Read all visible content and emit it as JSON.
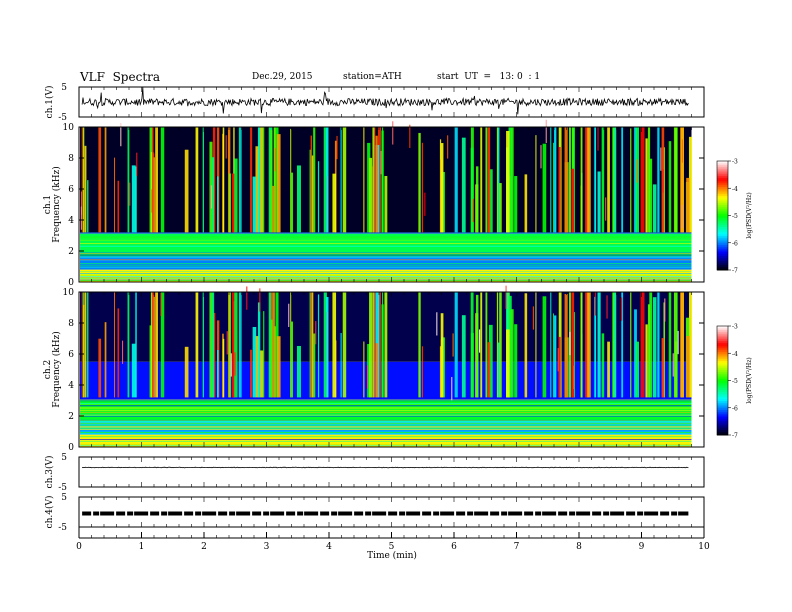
{
  "header": {
    "title": "VLF  Spectra",
    "date": "Dec.29, 2015",
    "station": "station=ATH",
    "start": "start  UT  =   13: 0  : 1"
  },
  "chart_data": [
    {
      "type": "line",
      "id": "ch1",
      "ylabel": "ch.1(V)",
      "ylim": [
        -5,
        5
      ],
      "yticks": [
        "5",
        "-5"
      ],
      "xlim": [
        0,
        10
      ],
      "baseline": 0,
      "noise_amplitude": 1.2,
      "spike_amplitude": 4.5
    },
    {
      "type": "heatmap",
      "id": "ch1-spectrogram",
      "ylabel_channel": "ch.1",
      "ylabel": "Frequency  (kHz)",
      "ylim": [
        0,
        10
      ],
      "yticks": [
        "0",
        "2",
        "4",
        "6",
        "8",
        "10"
      ],
      "xlim": [
        0,
        9.8
      ],
      "colorbar_label": "log(PSD(V²/Hz)",
      "colorbar_ticks": [
        "-3",
        "-4",
        "-5",
        "-6",
        "-7"
      ],
      "colorbar_range": [
        -7,
        -3
      ],
      "colormap": [
        "#000000",
        "#0000ff",
        "#00ffff",
        "#00ff00",
        "#ffff00",
        "#ff0000",
        "#ffffff"
      ],
      "bands": [
        {
          "from": 0,
          "to": 0.8,
          "level": -4.3
        },
        {
          "from": 0.8,
          "to": 1.6,
          "level": -6.0
        },
        {
          "from": 1.6,
          "to": 3.2,
          "level": -5.2
        },
        {
          "from": 3.2,
          "to": 10,
          "level": -6.9
        }
      ]
    },
    {
      "type": "heatmap",
      "id": "ch2-spectrogram",
      "ylabel_channel": "ch.2",
      "ylabel": "Frequency  (kHz)",
      "ylim": [
        0,
        10
      ],
      "yticks": [
        "0",
        "2",
        "4",
        "6",
        "8",
        "10"
      ],
      "xlim": [
        0,
        9.8
      ],
      "colorbar_label": "log(PSD(V²/Hz)",
      "colorbar_ticks": [
        "-3",
        "-4",
        "-5",
        "-6",
        "-7"
      ],
      "colorbar_range": [
        -7,
        -3
      ],
      "colormap": [
        "#000000",
        "#0000ff",
        "#00ffff",
        "#00ff00",
        "#ffff00",
        "#ff0000",
        "#ffffff"
      ],
      "bands": [
        {
          "from": 0,
          "to": 0.8,
          "level": -4.3
        },
        {
          "from": 0.8,
          "to": 1.6,
          "level": -5.8
        },
        {
          "from": 1.6,
          "to": 3.0,
          "level": -5.1
        },
        {
          "from": 3.0,
          "to": 5.5,
          "level": -6.3
        },
        {
          "from": 5.5,
          "to": 10,
          "level": -6.8
        }
      ]
    },
    {
      "type": "line",
      "id": "ch3",
      "ylabel": "ch.3(V)",
      "ylim": [
        -5,
        5
      ],
      "yticks": [
        "5",
        "-5"
      ],
      "xlim": [
        0,
        10
      ],
      "baseline": 1.5,
      "noise_amplitude": 0.1,
      "spike_amplitude": 0
    },
    {
      "type": "line",
      "id": "ch4",
      "ylabel": "ch.4(V)",
      "ylim": [
        -5,
        5
      ],
      "yticks": [
        "5",
        "-5"
      ],
      "xlim": [
        0,
        10
      ],
      "baseline": -0.5,
      "noise_amplitude": 0.3,
      "spike_amplitude": 0
    }
  ],
  "xaxis": {
    "label": "Time  (min)",
    "ticks": [
      "0",
      "1",
      "2",
      "3",
      "4",
      "5",
      "6",
      "7",
      "8",
      "9",
      "10"
    ]
  }
}
